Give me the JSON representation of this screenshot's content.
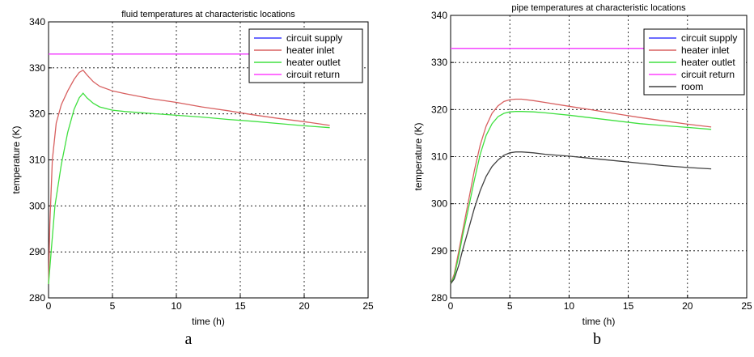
{
  "chart_data": [
    {
      "type": "line",
      "title": "fluid temperatures at characteristic locations",
      "xlabel": "time (h)",
      "ylabel": "temperature (K)",
      "xlim": [
        0,
        25
      ],
      "ylim": [
        280,
        340
      ],
      "xticks": [
        "0",
        "5",
        "10",
        "15",
        "20",
        "25"
      ],
      "yticks": [
        "280",
        "290",
        "300",
        "310",
        "320",
        "330",
        "340"
      ],
      "grid": true,
      "legend_position": "top-right",
      "caption": "a",
      "series": [
        {
          "name": "circuit supply",
          "color": "#3b3bff",
          "x": [
            0,
            22
          ],
          "y": [
            333,
            333
          ]
        },
        {
          "name": "heater inlet",
          "color": "#d86060",
          "x": [
            0,
            0.1,
            0.3,
            0.6,
            1.0,
            1.5,
            2.0,
            2.4,
            2.7,
            3.0,
            3.5,
            4.0,
            5.0,
            6.0,
            8.0,
            10.0,
            12.0,
            14.0,
            16.0,
            18.0,
            20.0,
            22.0
          ],
          "y": [
            283,
            296,
            310,
            318,
            322,
            325,
            327.5,
            329,
            329.5,
            328.5,
            327,
            326,
            325,
            324.4,
            323.3,
            322.5,
            321.5,
            320.7,
            319.8,
            319,
            318.3,
            317.5
          ]
        },
        {
          "name": "heater outlet",
          "color": "#40e040",
          "x": [
            0,
            0.2,
            0.5,
            1.0,
            1.5,
            2.0,
            2.4,
            2.7,
            3.0,
            3.5,
            4.0,
            5.0,
            6.0,
            8.0,
            10.0,
            12.0,
            14.0,
            16.0,
            18.0,
            20.0,
            22.0
          ],
          "y": [
            283,
            290,
            300,
            309,
            316,
            321,
            323.5,
            324.5,
            323.5,
            322.3,
            321.5,
            320.8,
            320.5,
            320.1,
            319.7,
            319.3,
            318.8,
            318.4,
            317.9,
            317.4,
            317
          ]
        },
        {
          "name": "circuit return",
          "color": "#ff40ff",
          "x": [
            0,
            22
          ],
          "y": [
            333,
            333
          ]
        }
      ]
    },
    {
      "type": "line",
      "title": "pipe temperatures at characteristic locations",
      "xlabel": "time (h)",
      "ylabel": "temperature (K)",
      "xlim": [
        0,
        25
      ],
      "ylim": [
        280,
        340
      ],
      "xticks": [
        "0",
        "5",
        "10",
        "15",
        "20",
        "25"
      ],
      "yticks": [
        "280",
        "290",
        "300",
        "310",
        "320",
        "330",
        "340"
      ],
      "grid": true,
      "legend_position": "top-right",
      "caption": "b",
      "series": [
        {
          "name": "circuit supply",
          "color": "#3b3bff",
          "x": [
            0,
            22
          ],
          "y": [
            333,
            333
          ]
        },
        {
          "name": "heater inlet",
          "color": "#d86060",
          "x": [
            0,
            0.3,
            0.7,
            1.0,
            1.5,
            2.0,
            2.5,
            3.0,
            3.5,
            4.0,
            4.5,
            5.0,
            5.5,
            6.0,
            7.0,
            8.0,
            10.0,
            12.0,
            14.0,
            16.0,
            18.0,
            20.0,
            22.0
          ],
          "y": [
            283,
            285,
            290,
            294,
            300.5,
            307,
            312.5,
            316.5,
            319.2,
            320.8,
            321.7,
            322.1,
            322.2,
            322.2,
            321.9,
            321.5,
            320.7,
            319.9,
            319.1,
            318.3,
            317.6,
            316.9,
            316.3
          ]
        },
        {
          "name": "heater outlet",
          "color": "#40e040",
          "x": [
            0,
            0.3,
            0.7,
            1.0,
            1.5,
            2.0,
            2.5,
            3.0,
            3.5,
            4.0,
            4.5,
            5.0,
            5.5,
            6.0,
            7.0,
            8.0,
            10.0,
            12.0,
            14.0,
            16.0,
            18.0,
            20.0,
            22.0
          ],
          "y": [
            283,
            284.5,
            289,
            293,
            299,
            305,
            310.5,
            314.5,
            317,
            318.5,
            319.2,
            319.5,
            319.6,
            319.6,
            319.5,
            319.3,
            318.8,
            318.2,
            317.6,
            317,
            316.6,
            316.2,
            315.8
          ]
        },
        {
          "name": "circuit return",
          "color": "#ff40ff",
          "x": [
            0,
            22
          ],
          "y": [
            333,
            333
          ]
        },
        {
          "name": "room",
          "color": "#404040",
          "x": [
            0,
            0.3,
            0.7,
            1.0,
            1.5,
            2.0,
            2.5,
            3.0,
            3.5,
            4.0,
            4.5,
            5.0,
            5.5,
            6.0,
            7.0,
            8.0,
            10.0,
            12.0,
            14.0,
            16.0,
            18.0,
            20.0,
            22.0
          ],
          "y": [
            283,
            284,
            287,
            290,
            294.5,
            299,
            302.8,
            305.8,
            307.9,
            309.3,
            310.3,
            310.8,
            311,
            311,
            310.8,
            310.5,
            310.1,
            309.6,
            309.1,
            308.6,
            308.1,
            307.7,
            307.4
          ]
        }
      ]
    }
  ]
}
